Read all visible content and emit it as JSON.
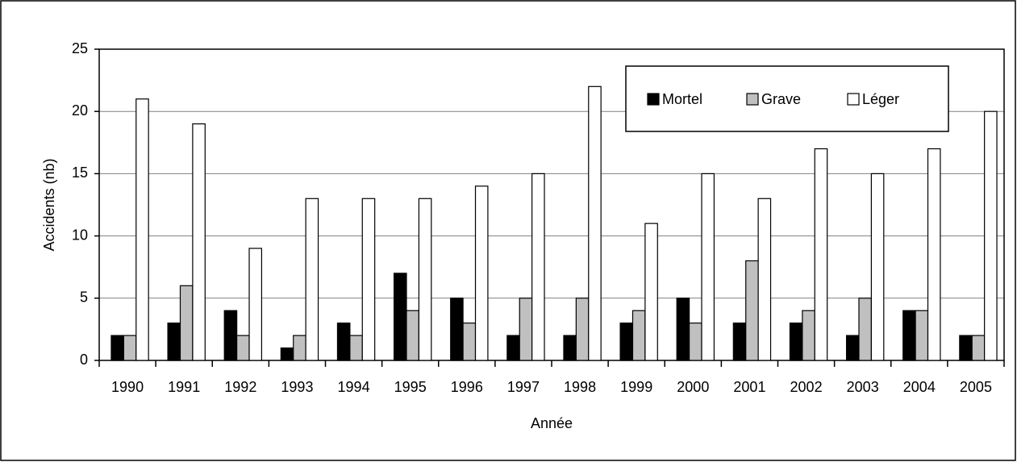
{
  "chart_data": {
    "type": "bar",
    "categories": [
      "1990",
      "1991",
      "1992",
      "1993",
      "1994",
      "1995",
      "1996",
      "1997",
      "1998",
      "1999",
      "2000",
      "2001",
      "2002",
      "2003",
      "2004",
      "2005"
    ],
    "series": [
      {
        "name": "Mortel",
        "color": "#000000",
        "values": [
          2,
          3,
          4,
          1,
          3,
          7,
          5,
          2,
          2,
          3,
          5,
          3,
          3,
          2,
          4,
          2
        ]
      },
      {
        "name": "Grave",
        "color": "#c0c0c0",
        "values": [
          2,
          6,
          2,
          2,
          2,
          4,
          3,
          5,
          5,
          4,
          3,
          8,
          4,
          5,
          4,
          2
        ]
      },
      {
        "name": "Léger",
        "color": "#ffffff",
        "values": [
          21,
          19,
          9,
          13,
          13,
          13,
          14,
          15,
          22,
          11,
          15,
          13,
          17,
          15,
          17,
          20
        ]
      }
    ],
    "x_label": "Année",
    "y_label": "Accidents (nb)",
    "ylim": [
      0,
      25
    ],
    "yticks": [
      0,
      5,
      10,
      15,
      20,
      25
    ],
    "grid": true,
    "legend": "top-right"
  }
}
